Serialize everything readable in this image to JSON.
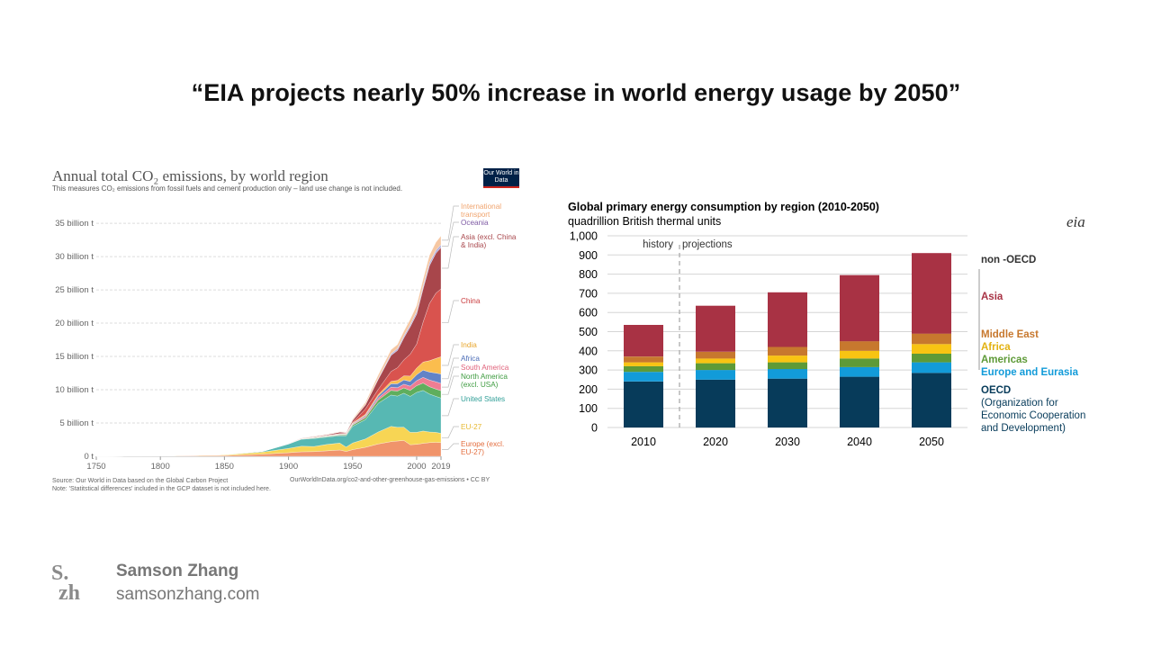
{
  "slide": {
    "title": "“EIA projects nearly 50% increase in world energy usage by 2050”"
  },
  "author": {
    "name": "Samson Zhang",
    "website": "samsonzhang.com",
    "logo_line1": "S.",
    "logo_line2": "zh"
  },
  "owid": {
    "logo_text": "Our World in Data",
    "source": "Source: Our World in Data based on the Global Carbon Project",
    "note": "Note: 'Statitstical differences' included in the GCP dataset is not included here.",
    "url": "OurWorldInData.org/co2-and-other-greenhouse-gas-emissions • CC BY"
  },
  "eia": {
    "logo_text": "eia",
    "label_history": "history",
    "label_projections": "projections",
    "label_non_oecd": "non -OECD"
  },
  "chart_data": [
    {
      "type": "area",
      "title": "Annual total CO₂ emissions, by world region",
      "subtitle": "This measures CO₂ emissions from fossil fuels and cement production only – land use change is not included.",
      "y_tick_labels": [
        "0 t",
        "5 billion t",
        "10 billion t",
        "15 billion t",
        "20 billion t",
        "25 billion t",
        "30 billion t",
        "35 billion t"
      ],
      "y_ticks": [
        0,
        5,
        10,
        15,
        20,
        25,
        30,
        35
      ],
      "x_tick_labels": [
        "1750",
        "1800",
        "1850",
        "1900",
        "1950",
        "2000",
        "2019"
      ],
      "x_ticks": [
        1750,
        1800,
        1850,
        1900,
        1950,
        2000,
        2019
      ],
      "xlim": [
        1750,
        2019
      ],
      "ylim": [
        0,
        36.5
      ],
      "grid": true,
      "x": [
        1750,
        1800,
        1850,
        1880,
        1900,
        1910,
        1920,
        1930,
        1940,
        1945,
        1950,
        1960,
        1970,
        1980,
        1985,
        1990,
        1995,
        2000,
        2005,
        2010,
        2015,
        2019
      ],
      "series": [
        {
          "name": "Europe (excl. EU-27)",
          "color": "#f0946b",
          "values": [
            0.01,
            0.03,
            0.12,
            0.33,
            0.54,
            0.68,
            0.7,
            0.83,
            0.94,
            0.73,
            1.0,
            1.35,
            1.85,
            2.2,
            2.3,
            2.38,
            1.75,
            1.8,
            1.95,
            2.05,
            2.1,
            2.05
          ]
        },
        {
          "name": "EU-27",
          "color": "#f7d554",
          "values": [
            0.0,
            0.02,
            0.1,
            0.3,
            0.65,
            0.84,
            0.78,
            0.95,
            1.05,
            0.65,
            1.0,
            1.25,
            1.8,
            2.3,
            2.05,
            2.0,
            1.85,
            1.8,
            1.85,
            1.6,
            1.5,
            1.4
          ]
        },
        {
          "name": "United States",
          "color": "#57b8b3",
          "values": [
            0.0,
            0.0,
            0.02,
            0.12,
            0.65,
            1.03,
            1.2,
            1.1,
            1.1,
            1.7,
            2.5,
            2.9,
            4.3,
            4.7,
            4.7,
            5.1,
            5.4,
            6.0,
            6.1,
            5.7,
            5.4,
            5.3
          ]
        },
        {
          "name": "North America (excl. USA)",
          "color": "#5fae5d",
          "values": [
            0.0,
            0.0,
            0.0,
            0.01,
            0.03,
            0.05,
            0.08,
            0.1,
            0.12,
            0.14,
            0.2,
            0.3,
            0.5,
            0.7,
            0.75,
            0.8,
            0.9,
            1.0,
            1.1,
            1.1,
            1.1,
            1.1
          ]
        },
        {
          "name": "South America",
          "color": "#ee7d93",
          "values": [
            0.0,
            0.0,
            0.0,
            0.0,
            0.01,
            0.02,
            0.03,
            0.04,
            0.05,
            0.06,
            0.1,
            0.2,
            0.3,
            0.5,
            0.5,
            0.55,
            0.65,
            0.75,
            0.85,
            1.0,
            1.1,
            1.1
          ]
        },
        {
          "name": "Africa",
          "color": "#6283c7",
          "values": [
            0.0,
            0.0,
            0.0,
            0.0,
            0.01,
            0.02,
            0.03,
            0.04,
            0.05,
            0.06,
            0.1,
            0.15,
            0.3,
            0.5,
            0.6,
            0.65,
            0.7,
            0.9,
            1.1,
            1.2,
            1.3,
            1.4
          ]
        },
        {
          "name": "India",
          "color": "#fbbd4e",
          "values": [
            0.0,
            0.0,
            0.0,
            0.01,
            0.02,
            0.03,
            0.04,
            0.05,
            0.06,
            0.07,
            0.1,
            0.15,
            0.2,
            0.35,
            0.5,
            0.6,
            0.8,
            1.0,
            1.2,
            1.7,
            2.2,
            2.6
          ]
        },
        {
          "name": "China",
          "color": "#d9534e",
          "values": [
            0.0,
            0.0,
            0.0,
            0.0,
            0.01,
            0.02,
            0.03,
            0.03,
            0.05,
            0.05,
            0.08,
            0.8,
            0.8,
            1.5,
            1.9,
            2.4,
            3.3,
            3.6,
            6.0,
            8.6,
            9.8,
            10.2
          ]
        },
        {
          "name": "Asia (excl. China & India)",
          "color": "#a8464b",
          "values": [
            0.0,
            0.0,
            0.0,
            0.01,
            0.03,
            0.05,
            0.08,
            0.1,
            0.2,
            0.1,
            0.3,
            0.6,
            1.5,
            2.4,
            2.6,
            3.3,
            4.1,
            4.5,
            5.0,
            5.7,
            6.0,
            6.2
          ]
        },
        {
          "name": "Oceania",
          "color": "#b5b2de",
          "values": [
            0.0,
            0.0,
            0.0,
            0.01,
            0.01,
            0.02,
            0.02,
            0.03,
            0.03,
            0.03,
            0.05,
            0.08,
            0.15,
            0.25,
            0.28,
            0.3,
            0.33,
            0.38,
            0.42,
            0.45,
            0.45,
            0.46
          ]
        },
        {
          "name": "International transport",
          "color": "#f6c7a2",
          "values": [
            0.0,
            0.0,
            0.0,
            0.0,
            0.0,
            0.0,
            0.05,
            0.05,
            0.06,
            0.06,
            0.15,
            0.3,
            0.5,
            0.6,
            0.6,
            0.7,
            0.8,
            0.9,
            1.0,
            1.1,
            1.2,
            1.3
          ]
        }
      ],
      "legend_labels": [
        {
          "text": "International transport",
          "lines": [
            "International",
            "transport"
          ],
          "color": "#f0a46e"
        },
        {
          "text": "Oceania",
          "lines": [
            "Oceania"
          ],
          "color": "#7e5aa4"
        },
        {
          "text": "Asia (excl. China & India)",
          "lines": [
            "Asia (excl. China",
            "& India)"
          ],
          "color": "#a8464b"
        },
        {
          "text": "China",
          "lines": [
            "China"
          ],
          "color": "#c9393b"
        },
        {
          "text": "India",
          "lines": [
            "India"
          ],
          "color": "#e8a52b"
        },
        {
          "text": "Africa",
          "lines": [
            "Africa"
          ],
          "color": "#4b6cb6"
        },
        {
          "text": "South America",
          "lines": [
            "South America"
          ],
          "color": "#e0617a"
        },
        {
          "text": "North America (excl. USA)",
          "lines": [
            "North America",
            "(excl. USA)"
          ],
          "color": "#3d9b3f"
        },
        {
          "text": "United States",
          "lines": [
            "United States"
          ],
          "color": "#2f9e97"
        },
        {
          "text": "EU-27",
          "lines": [
            "EU-27"
          ],
          "color": "#e7b932"
        },
        {
          "text": "Europe (excl. EU-27)",
          "lines": [
            "Europe (excl.",
            "EU-27)"
          ],
          "color": "#e36c3c"
        }
      ]
    },
    {
      "type": "bar",
      "stacked": true,
      "title": "Global primary energy consumption by region (2010-2050)",
      "subtitle": "quadrillion British thermal units",
      "categories": [
        "2010",
        "2020",
        "2030",
        "2040",
        "2050"
      ],
      "y_tick_labels": [
        "0",
        "100",
        "200",
        "300",
        "400",
        "500",
        "600",
        "700",
        "800",
        "900",
        "1,000"
      ],
      "y_ticks": [
        0,
        100,
        200,
        300,
        400,
        500,
        600,
        700,
        800,
        900,
        1000
      ],
      "ylim": [
        0,
        1000
      ],
      "grid": true,
      "series": [
        {
          "name": "OECD (Organization for Economic Cooperation and Development)",
          "color": "#073b5a",
          "values": [
            240,
            250,
            255,
            265,
            285
          ]
        },
        {
          "name": "Europe and Eurasia",
          "color": "#129bd9",
          "values": [
            50,
            50,
            50,
            50,
            55
          ]
        },
        {
          "name": "Americas",
          "color": "#5e9a37",
          "values": [
            30,
            35,
            35,
            45,
            45
          ]
        },
        {
          "name": "Africa",
          "color": "#f8c413",
          "values": [
            20,
            25,
            35,
            40,
            50
          ]
        },
        {
          "name": "Middle East",
          "color": "#c7782e",
          "values": [
            30,
            35,
            45,
            50,
            55
          ]
        },
        {
          "name": "Asia",
          "color": "#a83244",
          "values": [
            165,
            240,
            285,
            345,
            420
          ]
        }
      ],
      "legend_labels": [
        {
          "text": "Asia",
          "color": "#a83244"
        },
        {
          "text": "Middle East",
          "color": "#c7782e"
        },
        {
          "text": "Africa",
          "color": "#e2b10f"
        },
        {
          "text": "Americas",
          "color": "#5e9a37"
        },
        {
          "text": "Europe and Eurasia",
          "color": "#129bd9"
        },
        {
          "text": "OECD",
          "color": "#073b5a"
        },
        {
          "text": "(Organization for",
          "color": "#073b5a"
        },
        {
          "text": "Economic Cooperation",
          "color": "#073b5a"
        },
        {
          "text": "and Development)",
          "color": "#073b5a"
        }
      ]
    }
  ]
}
